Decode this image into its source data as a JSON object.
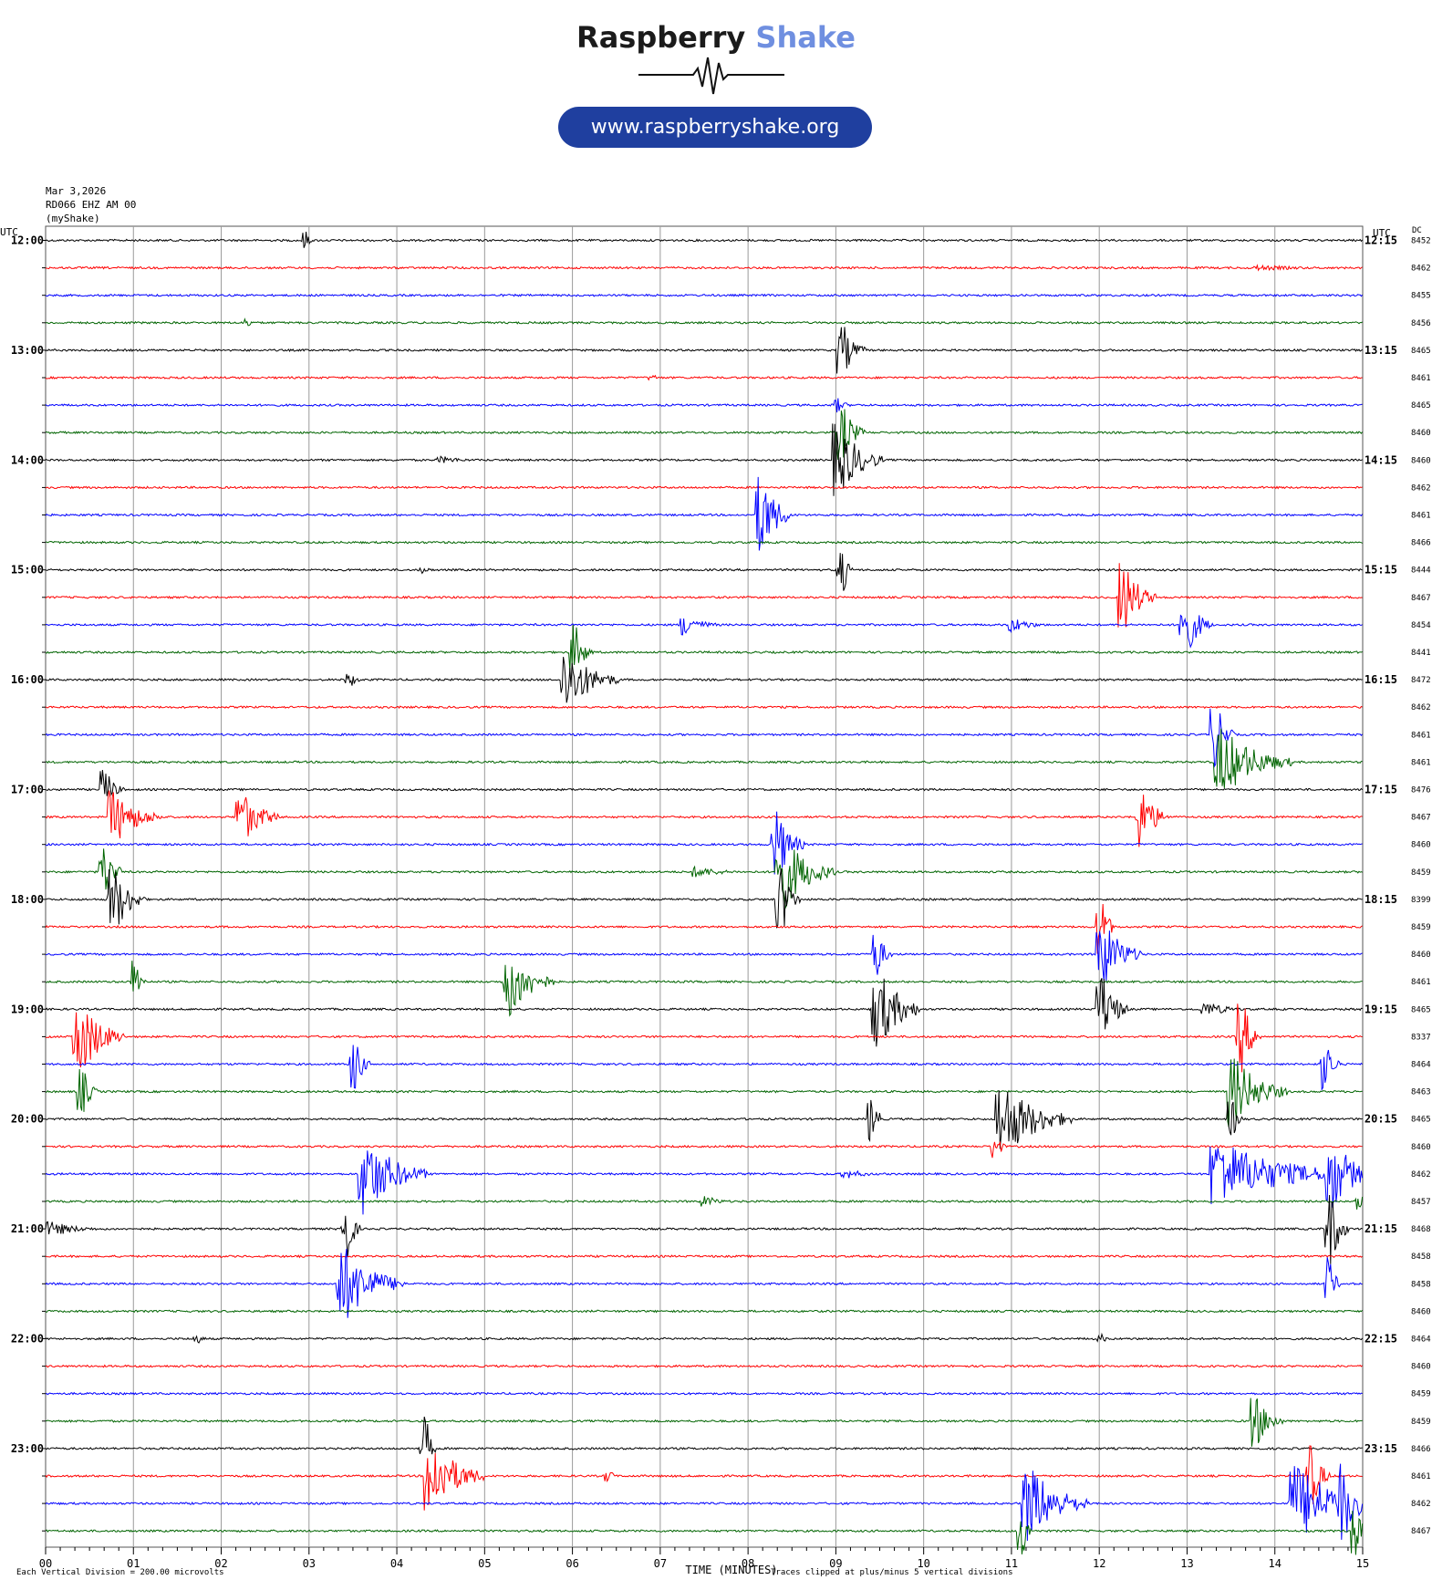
{
  "header": {
    "brand_word1": "Raspberry",
    "brand_word2": "Shake",
    "url": "www.raspberryshake.org"
  },
  "meta": {
    "date": "Mar 3,2026",
    "station": "RD066 EHZ AM 00",
    "source": "(myShake)"
  },
  "colors": {
    "trace_cycle": [
      "#000000",
      "#ff0000",
      "#0000ff",
      "#006400"
    ],
    "brand_accent": "#6f8fe0",
    "url_pill": "#1f3f9f",
    "grid": "#9a9a9a"
  },
  "chart_data": {
    "type": "helicorder",
    "left_axis_label": "UTC",
    "right_axis_label": "UTC",
    "dc_label": "DC",
    "x_title": "TIME (MINUTES)",
    "xlim": [
      0,
      15
    ],
    "x_ticks": [
      "00",
      "01",
      "02",
      "03",
      "04",
      "05",
      "06",
      "07",
      "08",
      "09",
      "10",
      "11",
      "12",
      "13",
      "14",
      "15"
    ],
    "row_minutes": 15,
    "left_hour_labels": [
      "12:00",
      "13:00",
      "14:00",
      "15:00",
      "16:00",
      "17:00",
      "18:00",
      "19:00",
      "20:00",
      "21:00",
      "22:00",
      "23:00"
    ],
    "right_hour_labels": [
      "12:15",
      "13:15",
      "14:15",
      "15:15",
      "16:15",
      "17:15",
      "18:15",
      "19:15",
      "20:15",
      "21:15",
      "22:15",
      "23:15"
    ],
    "dc_values": [
      "8452",
      "8462",
      "8455",
      "8456",
      "8465",
      "8461",
      "8465",
      "8460",
      "8460",
      "8462",
      "8461",
      "8466",
      "8444",
      "8467",
      "8454",
      "8441",
      "8472",
      "8462",
      "8461",
      "8461",
      "8476",
      "8467",
      "8460",
      "8459",
      "8399",
      "8459",
      "8460",
      "8461",
      "8465",
      "8337",
      "8464",
      "8463",
      "8465",
      "8460",
      "8462",
      "8457",
      "8468",
      "8458",
      "8458",
      "8460",
      "8464",
      "8460",
      "8459",
      "8459",
      "8466",
      "8461",
      "8462",
      "8467"
    ],
    "footer_left": "Each Vertical Division =  200.00 microvolts",
    "footer_right": "Traces clipped at plus/minus 5 vertical divisions",
    "events": [
      {
        "row": 0,
        "minute": 2.95,
        "amp": 10,
        "dur": 0.05
      },
      {
        "row": 1,
        "minute": 13.8,
        "amp": 3,
        "dur": 1.2
      },
      {
        "row": 3,
        "minute": 2.3,
        "amp": 5,
        "dur": 0.05
      },
      {
        "row": 4,
        "minute": 9.05,
        "amp": 28,
        "dur": 0.25
      },
      {
        "row": 5,
        "minute": 6.9,
        "amp": 3,
        "dur": 0.1
      },
      {
        "row": 6,
        "minute": 9.0,
        "amp": 8,
        "dur": 0.15
      },
      {
        "row": 7,
        "minute": 9.05,
        "amp": 30,
        "dur": 0.25
      },
      {
        "row": 8,
        "minute": 9.0,
        "amp": 40,
        "dur": 0.5
      },
      {
        "row": 8,
        "minute": 4.5,
        "amp": 4,
        "dur": 0.5
      },
      {
        "row": 10,
        "minute": 8.12,
        "amp": 45,
        "dur": 0.35
      },
      {
        "row": 12,
        "minute": 9.05,
        "amp": 25,
        "dur": 0.1
      },
      {
        "row": 12,
        "minute": 4.3,
        "amp": 4,
        "dur": 0.1
      },
      {
        "row": 13,
        "minute": 12.25,
        "amp": 40,
        "dur": 0.35
      },
      {
        "row": 14,
        "minute": 7.25,
        "amp": 12,
        "dur": 0.4
      },
      {
        "row": 14,
        "minute": 12.95,
        "amp": 35,
        "dur": 0.3
      },
      {
        "row": 14,
        "minute": 11.0,
        "amp": 8,
        "dur": 0.4
      },
      {
        "row": 15,
        "minute": 6.0,
        "amp": 30,
        "dur": 0.2
      },
      {
        "row": 16,
        "minute": 5.9,
        "amp": 35,
        "dur": 0.6
      },
      {
        "row": 16,
        "minute": 3.45,
        "amp": 7,
        "dur": 0.15
      },
      {
        "row": 18,
        "minute": 13.3,
        "amp": 35,
        "dur": 0.2
      },
      {
        "row": 19,
        "minute": 13.35,
        "amp": 40,
        "dur": 0.8
      },
      {
        "row": 20,
        "minute": 0.65,
        "amp": 22,
        "dur": 0.2
      },
      {
        "row": 21,
        "minute": 0.75,
        "amp": 30,
        "dur": 0.55
      },
      {
        "row": 21,
        "minute": 2.2,
        "amp": 30,
        "dur": 0.45
      },
      {
        "row": 21,
        "minute": 12.45,
        "amp": 35,
        "dur": 0.3
      },
      {
        "row": 22,
        "minute": 8.3,
        "amp": 40,
        "dur": 0.3
      },
      {
        "row": 23,
        "minute": 8.35,
        "amp": 45,
        "dur": 0.6
      },
      {
        "row": 23,
        "minute": 0.65,
        "amp": 30,
        "dur": 0.2
      },
      {
        "row": 23,
        "minute": 7.4,
        "amp": 6,
        "dur": 0.6
      },
      {
        "row": 24,
        "minute": 0.75,
        "amp": 38,
        "dur": 0.35
      },
      {
        "row": 24,
        "minute": 8.35,
        "amp": 40,
        "dur": 0.2
      },
      {
        "row": 25,
        "minute": 12.0,
        "amp": 30,
        "dur": 0.15
      },
      {
        "row": 26,
        "minute": 12.0,
        "amp": 40,
        "dur": 0.45
      },
      {
        "row": 26,
        "minute": 9.45,
        "amp": 25,
        "dur": 0.15
      },
      {
        "row": 27,
        "minute": 5.25,
        "amp": 40,
        "dur": 0.5
      },
      {
        "row": 27,
        "minute": 1.0,
        "amp": 25,
        "dur": 0.1
      },
      {
        "row": 28,
        "minute": 9.45,
        "amp": 45,
        "dur": 0.5
      },
      {
        "row": 28,
        "minute": 12.0,
        "amp": 40,
        "dur": 0.3
      },
      {
        "row": 28,
        "minute": 13.2,
        "amp": 8,
        "dur": 0.5
      },
      {
        "row": 29,
        "minute": 0.35,
        "amp": 45,
        "dur": 0.5
      },
      {
        "row": 29,
        "minute": 13.6,
        "amp": 40,
        "dur": 0.2
      },
      {
        "row": 30,
        "minute": 3.5,
        "amp": 30,
        "dur": 0.15
      },
      {
        "row": 30,
        "minute": 14.55,
        "amp": 30,
        "dur": 0.15
      },
      {
        "row": 31,
        "minute": 13.5,
        "amp": 40,
        "dur": 0.6
      },
      {
        "row": 31,
        "minute": 0.4,
        "amp": 25,
        "dur": 0.15
      },
      {
        "row": 32,
        "minute": 10.85,
        "amp": 45,
        "dur": 0.8
      },
      {
        "row": 32,
        "minute": 9.4,
        "amp": 25,
        "dur": 0.1
      },
      {
        "row": 32,
        "minute": 13.5,
        "amp": 20,
        "dur": 0.1
      },
      {
        "row": 33,
        "minute": 10.8,
        "amp": 15,
        "dur": 0.1
      },
      {
        "row": 34,
        "minute": 3.6,
        "amp": 45,
        "dur": 0.7
      },
      {
        "row": 34,
        "minute": 13.3,
        "amp": 40,
        "dur": 1.5
      },
      {
        "row": 34,
        "minute": 14.6,
        "amp": 45,
        "dur": 0.5
      },
      {
        "row": 34,
        "minute": 9.1,
        "amp": 5,
        "dur": 0.5
      },
      {
        "row": 35,
        "minute": 7.5,
        "amp": 6,
        "dur": 0.3
      },
      {
        "row": 35,
        "minute": 14.95,
        "amp": 12,
        "dur": 0.1
      },
      {
        "row": 36,
        "minute": 0.05,
        "amp": 8,
        "dur": 0.6
      },
      {
        "row": 36,
        "minute": 3.4,
        "amp": 35,
        "dur": 0.15
      },
      {
        "row": 36,
        "minute": 14.6,
        "amp": 45,
        "dur": 0.2
      },
      {
        "row": 38,
        "minute": 3.35,
        "amp": 45,
        "dur": 0.7
      },
      {
        "row": 38,
        "minute": 14.6,
        "amp": 30,
        "dur": 0.1
      },
      {
        "row": 40,
        "minute": 1.7,
        "amp": 5,
        "dur": 0.15
      },
      {
        "row": 40,
        "minute": 12.0,
        "amp": 5,
        "dur": 0.1
      },
      {
        "row": 43,
        "minute": 13.75,
        "amp": 30,
        "dur": 0.3
      },
      {
        "row": 44,
        "minute": 4.3,
        "amp": 35,
        "dur": 0.1
      },
      {
        "row": 45,
        "minute": 4.35,
        "amp": 45,
        "dur": 0.6
      },
      {
        "row": 45,
        "minute": 6.4,
        "amp": 8,
        "dur": 0.05
      },
      {
        "row": 45,
        "minute": 14.4,
        "amp": 35,
        "dur": 0.2
      },
      {
        "row": 46,
        "minute": 11.15,
        "amp": 45,
        "dur": 0.7
      },
      {
        "row": 46,
        "minute": 14.2,
        "amp": 45,
        "dur": 1.0
      },
      {
        "row": 46,
        "minute": 14.75,
        "amp": 45,
        "dur": 0.3
      },
      {
        "row": 47,
        "minute": 11.1,
        "amp": 30,
        "dur": 0.1
      },
      {
        "row": 47,
        "minute": 14.9,
        "amp": 30,
        "dur": 0.1
      }
    ]
  }
}
